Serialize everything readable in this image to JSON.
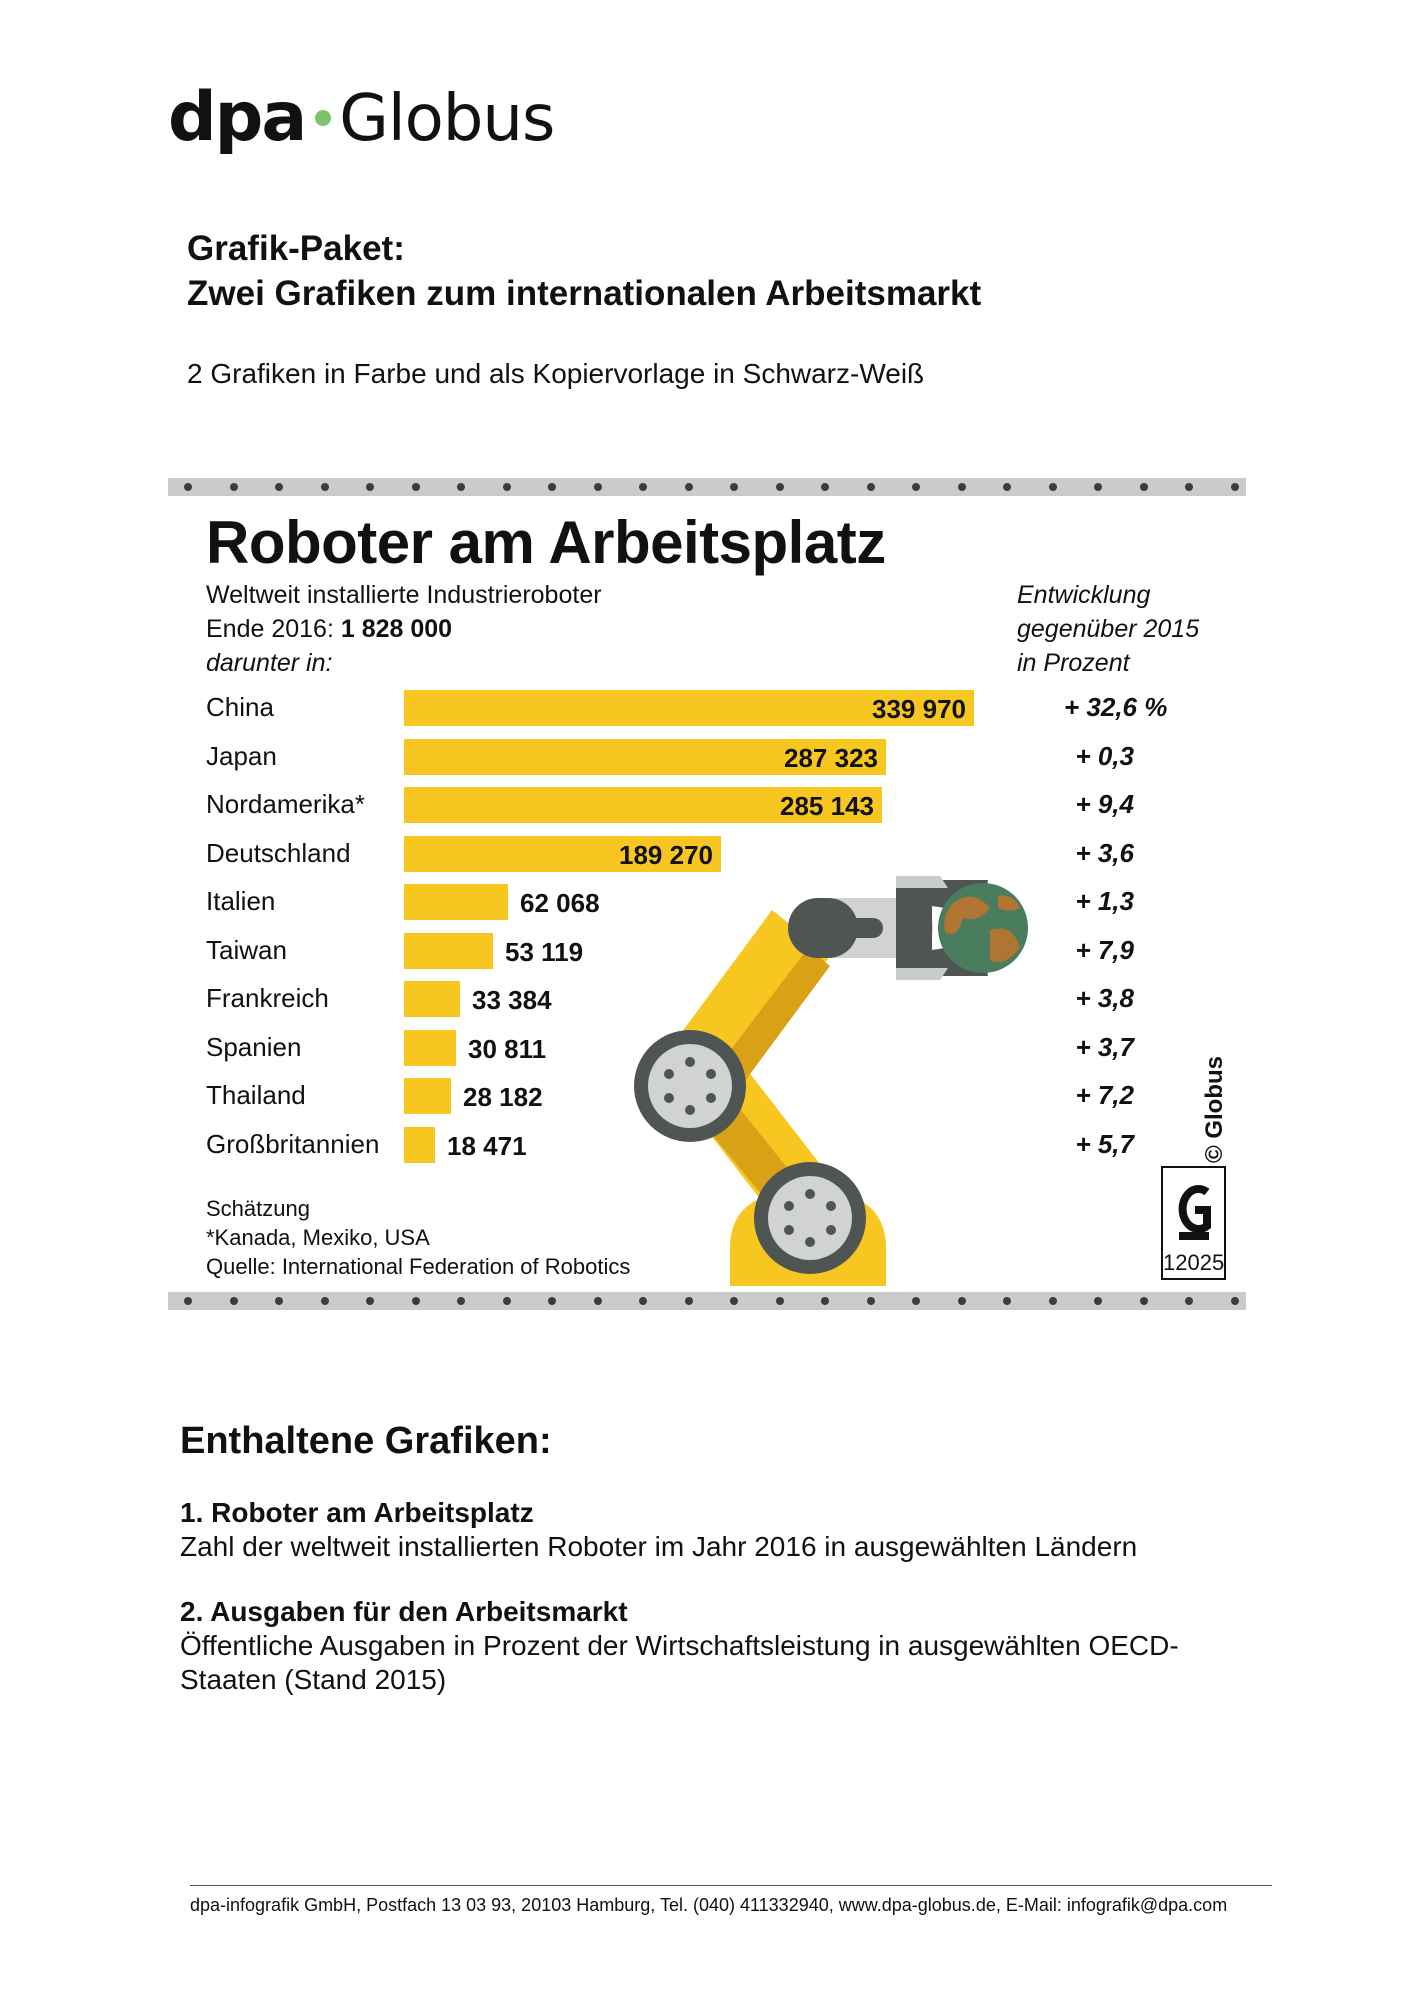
{
  "header": {
    "logo_dpa": "dpa",
    "logo_globus": "Globus",
    "package_title_line1": "Grafik-Paket:",
    "package_title_line2": "Zwei Grafiken zum internationalen Arbeitsmarkt",
    "package_subtitle": "2 Grafiken in Farbe und als Kopiervorlage in Schwarz-Weiß"
  },
  "graphic": {
    "title": "Roboter am Arbeitsplatz",
    "subtitle_line1": "Weltweit installierte Industrieroboter",
    "subtitle_line2_prefix": "Ende 2016: ",
    "subtitle_line2_total": "1 828 000",
    "subtitle_line3": "darunter in:",
    "dev_head_line1": "Entwicklung",
    "dev_head_line2": "gegenüber 2015",
    "dev_head_line3": "in Prozent",
    "note_1": "Schätzung",
    "note_2": "*Kanada, Mexiko, USA",
    "note_3": "Quelle: International Federation of Robotics",
    "copyright": "© Globus",
    "graphic_number": "12025",
    "bar_color": "#f8c620"
  },
  "chart_data": {
    "type": "bar",
    "orientation": "horizontal",
    "title": "Roboter am Arbeitsplatz",
    "categories": [
      "China",
      "Japan",
      "Nordamerika*",
      "Deutschland",
      "Italien",
      "Taiwan",
      "Frankreich",
      "Spanien",
      "Thailand",
      "Großbritannien"
    ],
    "values": [
      339970,
      287323,
      285143,
      189270,
      62068,
      53119,
      33384,
      30811,
      28182,
      18471
    ],
    "value_labels": [
      "339 970",
      "287 323",
      "285 143",
      "189 270",
      "62 068",
      "53 119",
      "33 384",
      "30 811",
      "28 182",
      "18 471"
    ],
    "change_labels": [
      "+ 32,6  %",
      "+ 0,3",
      "+ 9,4",
      "+ 3,6",
      "+ 1,3",
      "+ 7,9",
      "+ 3,8",
      "+ 3,7",
      "+ 7,2",
      "+ 5,7"
    ],
    "change_values": [
      32.6,
      0.3,
      9.4,
      3.6,
      1.3,
      7.9,
      3.8,
      3.7,
      7.2,
      5.7
    ],
    "xlim": [
      0,
      339970
    ]
  },
  "contents": {
    "heading": "Enthaltene Grafiken:",
    "item1_title": "1. Roboter am Arbeitsplatz",
    "item1_desc": "Zahl der weltweit installierten Roboter im Jahr 2016 in ausgewählten Ländern",
    "item2_title": "2. Ausgaben für den Arbeitsmarkt",
    "item2_desc": "Öffentliche Ausgaben in Prozent der Wirtschaftsleistung in ausgewählten OECD-Staaten (Stand 2015)"
  },
  "footer": {
    "text": "dpa-infografik GmbH, Postfach 13 03 93, 20103 Hamburg, Tel. (040) 411332940, www.dpa-globus.de, E-Mail: infografik@dpa.com"
  }
}
